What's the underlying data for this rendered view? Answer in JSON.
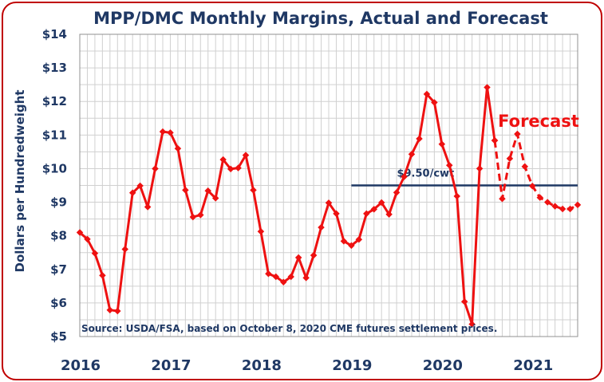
{
  "chart_data": {
    "type": "line",
    "title": "MPP/DMC Monthly Margins, Actual and Forecast",
    "ylabel": "Dollars per Hundredweight",
    "xlabel": "",
    "ylim": [
      5,
      14
    ],
    "y_ticks": [
      "$5",
      "$6",
      "$7",
      "$8",
      "$9",
      "$10",
      "$11",
      "$12",
      "$13",
      "$14"
    ],
    "x_ticks": [
      "2016",
      "2017",
      "2018",
      "2019",
      "2020",
      "2021"
    ],
    "grid": true,
    "series": [
      {
        "name": "Actual",
        "style": "solid",
        "color": "#ee1111",
        "x": [
          "2016-01",
          "2016-02",
          "2016-03",
          "2016-04",
          "2016-05",
          "2016-06",
          "2016-07",
          "2016-08",
          "2016-09",
          "2016-10",
          "2016-11",
          "2016-12",
          "2017-01",
          "2017-02",
          "2017-03",
          "2017-04",
          "2017-05",
          "2017-06",
          "2017-07",
          "2017-08",
          "2017-09",
          "2017-10",
          "2017-11",
          "2017-12",
          "2018-01",
          "2018-02",
          "2018-03",
          "2018-04",
          "2018-05",
          "2018-06",
          "2018-07",
          "2018-08",
          "2018-09",
          "2018-10",
          "2018-11",
          "2018-12",
          "2019-01",
          "2019-02",
          "2019-03",
          "2019-04",
          "2019-05",
          "2019-06",
          "2019-07",
          "2019-08",
          "2019-09",
          "2019-10",
          "2019-11",
          "2019-12",
          "2020-01",
          "2020-02",
          "2020-03",
          "2020-04",
          "2020-05",
          "2020-06",
          "2020-07",
          "2020-08"
        ],
        "values": [
          8.1,
          7.9,
          7.48,
          6.82,
          5.79,
          5.76,
          7.6,
          9.28,
          9.49,
          8.86,
          10.0,
          11.1,
          11.07,
          10.6,
          9.36,
          8.56,
          8.62,
          9.34,
          9.12,
          10.27,
          9.99,
          10.02,
          10.4,
          9.36,
          8.13,
          6.87,
          6.78,
          6.62,
          6.78,
          7.35,
          6.75,
          7.42,
          8.25,
          8.98,
          8.66,
          7.84,
          7.71,
          7.89,
          8.66,
          8.79,
          8.99,
          8.64,
          9.29,
          9.76,
          10.43,
          10.89,
          12.22,
          11.97,
          10.73,
          10.1,
          9.18,
          6.04,
          5.37,
          10.0,
          12.42,
          10.84
        ]
      },
      {
        "name": "Forecast",
        "style": "dashed",
        "color": "#ee1111",
        "x": [
          "2020-08",
          "2020-09",
          "2020-10",
          "2020-11",
          "2020-12",
          "2021-01",
          "2021-02",
          "2021-03",
          "2021-04",
          "2021-05",
          "2021-06",
          "2021-07"
        ],
        "values": [
          10.84,
          9.1,
          10.3,
          11.03,
          10.06,
          9.48,
          9.14,
          9.0,
          8.88,
          8.8,
          8.8,
          8.92
        ]
      }
    ],
    "reference_line": {
      "value": 9.5,
      "label": "$9.50/cwt",
      "from": "2019-01",
      "to": "2021-07",
      "color": "#1f3864"
    },
    "annotations": {
      "forecast": "Forecast",
      "source": "Source:  USDA/FSA, based on October 8, 2020 CME futures settlement prices."
    },
    "colors": {
      "frame": "#c00000",
      "text": "#1f3864",
      "series": "#ee1111",
      "grid": "#d0d0d0"
    }
  }
}
